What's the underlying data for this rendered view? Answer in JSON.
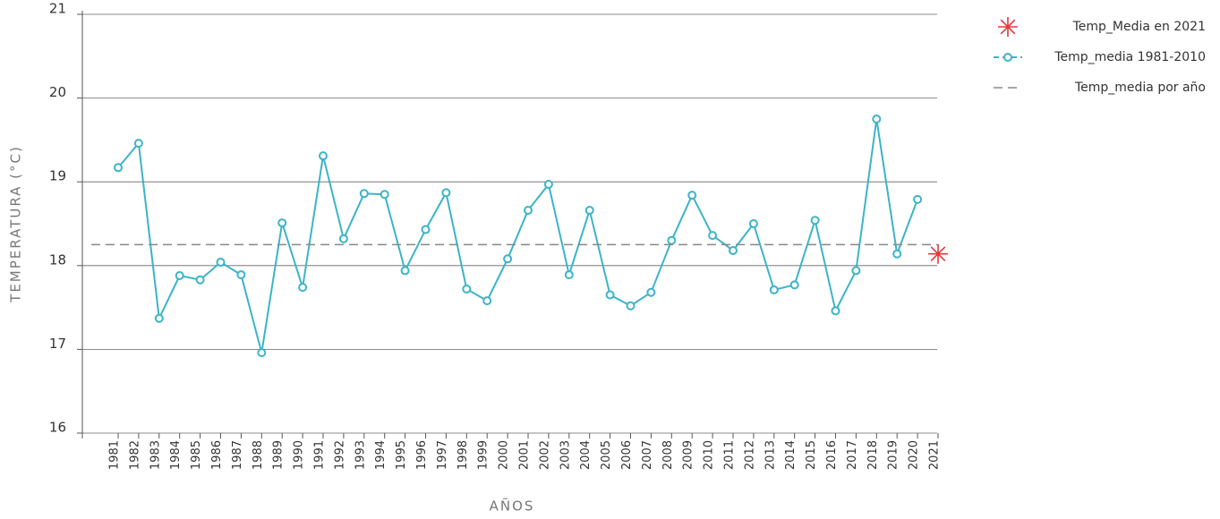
{
  "chart_data": {
    "type": "line",
    "x_label": "AÑOS",
    "y_label": "TEMPERATURA (°C)",
    "categories": [
      "1981",
      "1982",
      "1983",
      "1984",
      "1985",
      "1986",
      "1987",
      "1988",
      "1989",
      "1990",
      "1991",
      "1992",
      "1993",
      "1994",
      "1995",
      "1996",
      "1997",
      "1998",
      "1999",
      "2000",
      "2001",
      "2002",
      "2003",
      "2004",
      "2005",
      "2006",
      "2007",
      "2008",
      "2009",
      "2010",
      "2011",
      "2012",
      "2013",
      "2014",
      "2015",
      "2016",
      "2017",
      "2018",
      "2019",
      "2020",
      "2021"
    ],
    "series": [
      {
        "name": "Temp_Media en 2021",
        "color": "#e8363d",
        "marker": "star",
        "values": [
          null,
          null,
          null,
          null,
          null,
          null,
          null,
          null,
          null,
          null,
          null,
          null,
          null,
          null,
          null,
          null,
          null,
          null,
          null,
          null,
          null,
          null,
          null,
          null,
          null,
          null,
          null,
          null,
          null,
          null,
          null,
          null,
          null,
          null,
          null,
          null,
          null,
          null,
          null,
          null,
          18.14
        ]
      },
      {
        "name": "Temp_media 1981-2010",
        "color": "#3bb4c8",
        "marker": "circle",
        "values": [
          19.17,
          19.46,
          17.37,
          17.88,
          17.83,
          18.04,
          17.89,
          16.96,
          18.51,
          17.74,
          19.31,
          18.32,
          18.86,
          18.85,
          17.94,
          18.43,
          18.87,
          17.72,
          17.58,
          18.08,
          18.66,
          18.97,
          17.89,
          18.66,
          17.65,
          17.52,
          17.68,
          18.3,
          18.84,
          18.36,
          18.18,
          18.5,
          17.71,
          17.77,
          18.54,
          17.46,
          17.94,
          19.75,
          18.14,
          18.79,
          null
        ]
      },
      {
        "name": "Temp_media por año",
        "color": "#888888",
        "dashed": true,
        "value": 18.25
      }
    ],
    "ylim": [
      16,
      21
    ],
    "yticks": [
      16,
      17,
      18,
      19,
      20,
      21
    ],
    "grid": true,
    "legend": "top-right"
  }
}
